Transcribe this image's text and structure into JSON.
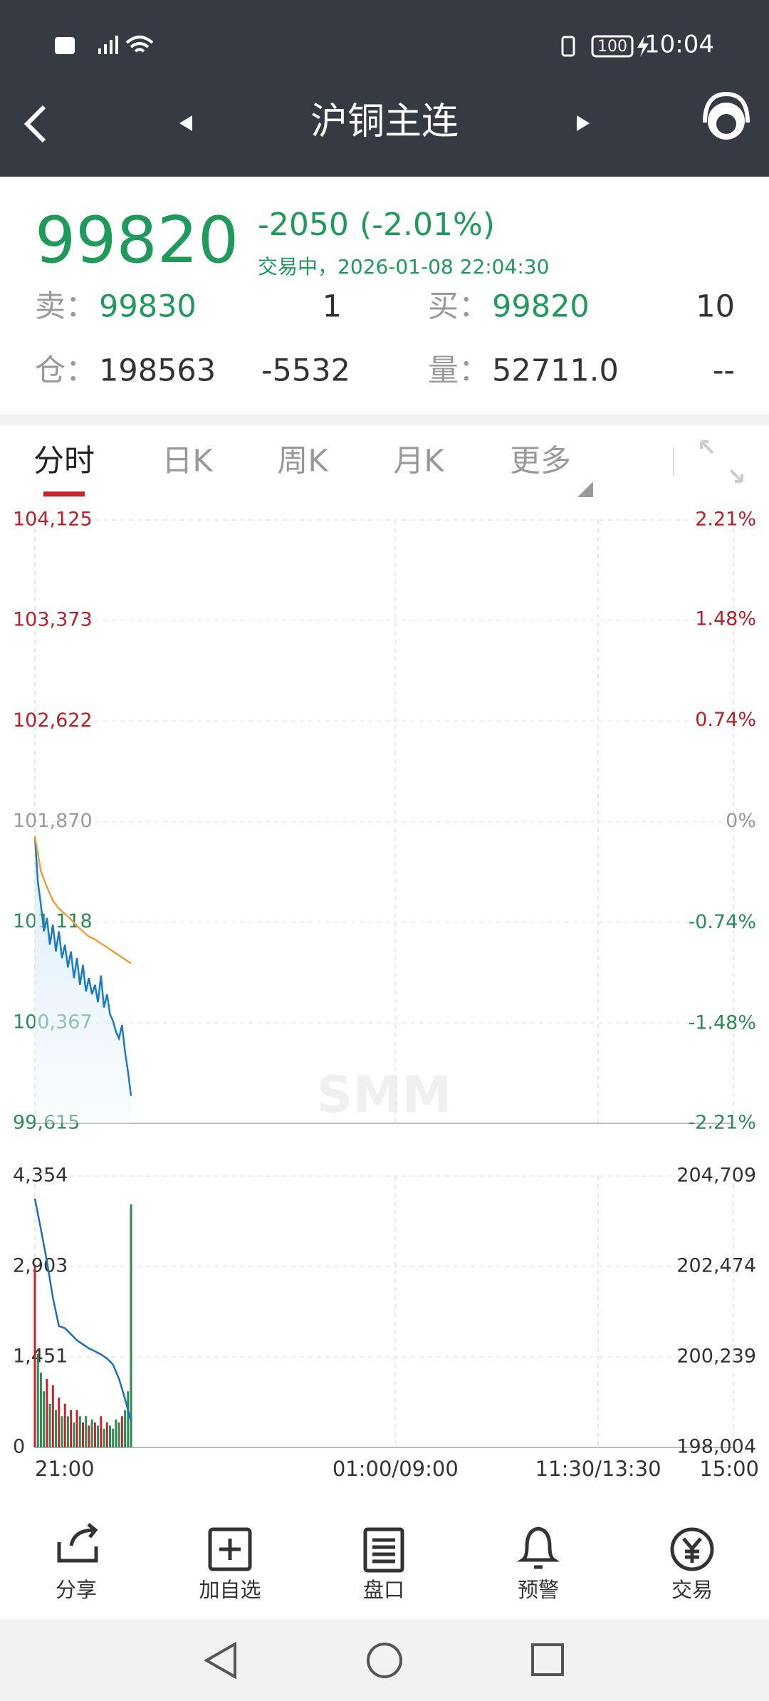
{
  "status_bar": {
    "time": "10:04",
    "battery": "100"
  },
  "header": {
    "title": "沪铜主连"
  },
  "quote": {
    "price": "99820",
    "change": "-2050",
    "change_pct": "(-2.01%)",
    "status": "交易中，2026-01-08 22:04:30",
    "ask_label": "卖：",
    "ask": "99830",
    "ask_size": "1",
    "bid_label": "买：",
    "bid": "99820",
    "bid_size": "10",
    "oi_label": "仓：",
    "oi": "198563",
    "oi_change": "-5532",
    "volume_label": "量：",
    "volume": "52711.0",
    "volume_extra": "--"
  },
  "tabs": [
    "分时",
    "日K",
    "周K",
    "月K",
    "更多"
  ],
  "chart_data": [
    {
      "type": "line",
      "watermark": "SMM",
      "grid": true,
      "xlim": [
        0,
        465
      ],
      "xticks": [
        0,
        240,
        375,
        465
      ],
      "ylim": [
        99615,
        104125
      ],
      "yticks": [
        {
          "value": 104125,
          "label": "104,125"
        },
        {
          "value": 103373,
          "label": "103,373"
        },
        {
          "value": 102622,
          "label": "102,622"
        },
        {
          "value": 101870,
          "label": "101,870"
        },
        {
          "value": 101118,
          "label": "101,118"
        },
        {
          "value": 100367,
          "label": "100,367"
        },
        {
          "value": 99615,
          "label": "99,615"
        }
      ],
      "y2lim": [
        -2.21,
        2.21
      ],
      "y2ticks": [
        {
          "value": 2.21,
          "label": "2.21%"
        },
        {
          "value": 1.48,
          "label": "1.48%"
        },
        {
          "value": 0.74,
          "label": "0.74%"
        },
        {
          "value": 0,
          "label": "0%"
        },
        {
          "value": -0.74,
          "label": "-0.74%"
        },
        {
          "value": -1.48,
          "label": "-1.48%"
        },
        {
          "value": -2.21,
          "label": "-2.21%"
        }
      ],
      "series": [
        {
          "color": "#1b7cc0",
          "area": true,
          "x": [
            0,
            2,
            4,
            6,
            8,
            10,
            12,
            14,
            16,
            18,
            20,
            22,
            24,
            26,
            28,
            30,
            32,
            34,
            36,
            38,
            40,
            42,
            44,
            46,
            48,
            50,
            52,
            54,
            56,
            58,
            60,
            62,
            64
          ],
          "values": [
            101760,
            101420,
            101250,
            101050,
            101150,
            100950,
            101100,
            100900,
            101050,
            100850,
            100950,
            100780,
            100900,
            100700,
            100850,
            100650,
            100800,
            100600,
            100700,
            100580,
            100650,
            100520,
            100720,
            100480,
            100580,
            100430,
            100380,
            100300,
            100250,
            100350,
            100150,
            100000,
            99820
          ]
        },
        {
          "color": "#e8a040",
          "x": [
            0,
            4,
            8,
            12,
            16,
            20,
            24,
            28,
            32,
            36,
            40,
            44,
            48,
            52,
            56,
            60,
            64
          ],
          "values": [
            101760,
            101500,
            101380,
            101280,
            101220,
            101180,
            101140,
            101090,
            101050,
            101010,
            100990,
            100960,
            100930,
            100900,
            100870,
            100840,
            100810
          ]
        }
      ]
    },
    {
      "type": "bar",
      "grid": true,
      "xlim": [
        0,
        465
      ],
      "xticks": [
        {
          "value": 0,
          "label": "21:00"
        },
        {
          "value": 240,
          "label": "01:00/09:00"
        },
        {
          "value": 375,
          "label": "11:30/13:30"
        },
        {
          "value": 465,
          "label": "15:00"
        }
      ],
      "ylim": [
        0,
        4354
      ],
      "yticks": [
        0,
        {
          "value": 1451,
          "label": "1,451"
        },
        {
          "value": 2903,
          "label": "2,903"
        },
        {
          "value": 4354,
          "label": "4,354"
        }
      ],
      "y2lim": [
        198004,
        204709
      ],
      "y2ticks": [
        {
          "value": 198004,
          "label": "198,004"
        },
        {
          "value": 200239,
          "label": "200,239"
        },
        {
          "value": 202474,
          "label": "202,474"
        },
        {
          "value": 204709,
          "label": "204,709"
        }
      ],
      "up_color": "#c0262d",
      "down_color": "#2e8b57",
      "x": [
        0,
        2,
        4,
        6,
        8,
        10,
        12,
        14,
        16,
        18,
        20,
        22,
        24,
        26,
        28,
        30,
        32,
        34,
        36,
        38,
        40,
        42,
        44,
        46,
        48,
        50,
        52,
        54,
        56,
        58,
        60,
        62,
        64
      ],
      "values": [
        2900,
        1500,
        1200,
        900,
        1100,
        700,
        1000,
        600,
        800,
        500,
        700,
        500,
        600,
        400,
        600,
        500,
        400,
        500,
        350,
        450,
        400,
        350,
        500,
        300,
        400,
        350,
        300,
        450,
        400,
        500,
        600,
        900,
        3900
      ],
      "series": [
        {
          "color": "#1e6fb8",
          "axis": "y2",
          "x": [
            0,
            4,
            8,
            12,
            16,
            20,
            24,
            28,
            32,
            36,
            40,
            44,
            48,
            52,
            56,
            60,
            64
          ],
          "values": [
            204150,
            203400,
            202600,
            201700,
            201000,
            200950,
            200800,
            200650,
            200550,
            200450,
            200380,
            200300,
            200200,
            200050,
            199700,
            199200,
            198650
          ]
        }
      ]
    }
  ],
  "toolbar": [
    "分享",
    "加自选",
    "盘口",
    "预警",
    "交易"
  ]
}
